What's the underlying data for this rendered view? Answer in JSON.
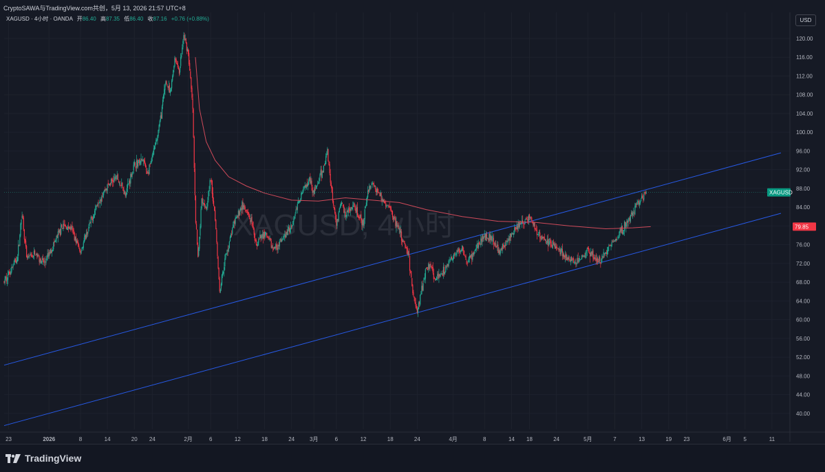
{
  "header": {
    "share_line": "CryptoSAWA与TradingView.com共创，5月 13, 2026 21:57 UTC+8"
  },
  "legend": {
    "symbol_line": "XAGUSD · 4小时 · OANDA",
    "open_label": "开",
    "open_value": "86.40",
    "high_label": "高",
    "high_value": "87.35",
    "low_label": "低",
    "low_value": "86.40",
    "close_label": "收",
    "close_value": "87.16",
    "change": "+0.76 (+0.88%)"
  },
  "currency_button": "USD",
  "watermark": "XAGUSD, 4小时",
  "price_badge": {
    "label": "XAGUSD",
    "color": "#089981"
  },
  "ma_badge": {
    "label": "79.85",
    "color": "#f23645"
  },
  "footer": {
    "brand": "TradingView"
  },
  "colors": {
    "background": "#161a25",
    "up": "#22ab94",
    "down": "#f23645",
    "ma": "#d04a5a",
    "trendline": "#2962ff"
  },
  "chart_data": {
    "type": "candlestick",
    "title": "",
    "ylim": [
      36.6,
      124.4
    ],
    "y_ticks": [
      "120.00",
      "116.00",
      "112.00",
      "108.00",
      "104.00",
      "100.00",
      "96.00",
      "92.00",
      "88.00",
      "84.00",
      "80.00",
      "76.00",
      "72.00",
      "68.00",
      "64.00",
      "60.00",
      "56.00",
      "52.00",
      "48.00",
      "44.00",
      "40.00"
    ],
    "x_ticks": [
      {
        "label": "23",
        "day": -9,
        "bold": false
      },
      {
        "label": "2026",
        "day": 0,
        "bold": true
      },
      {
        "label": "8",
        "day": 7,
        "bold": false
      },
      {
        "label": "14",
        "day": 13,
        "bold": false
      },
      {
        "label": "20",
        "day": 19,
        "bold": false
      },
      {
        "label": "24",
        "day": 23,
        "bold": false
      },
      {
        "label": "2月",
        "day": 31,
        "bold": false
      },
      {
        "label": "6",
        "day": 36,
        "bold": false
      },
      {
        "label": "12",
        "day": 42,
        "bold": false
      },
      {
        "label": "18",
        "day": 48,
        "bold": false
      },
      {
        "label": "24",
        "day": 54,
        "bold": false
      },
      {
        "label": "3月",
        "day": 59,
        "bold": false
      },
      {
        "label": "6",
        "day": 64,
        "bold": false
      },
      {
        "label": "12",
        "day": 70,
        "bold": false
      },
      {
        "label": "18",
        "day": 76,
        "bold": false
      },
      {
        "label": "24",
        "day": 82,
        "bold": false
      },
      {
        "label": "4月",
        "day": 90,
        "bold": false
      },
      {
        "label": "8",
        "day": 97,
        "bold": false
      },
      {
        "label": "14",
        "day": 103,
        "bold": false
      },
      {
        "label": "18",
        "day": 107,
        "bold": false
      },
      {
        "label": "24",
        "day": 113,
        "bold": false
      },
      {
        "label": "5月",
        "day": 120,
        "bold": false
      },
      {
        "label": "7",
        "day": 126,
        "bold": false
      },
      {
        "label": "13",
        "day": 132,
        "bold": false
      },
      {
        "label": "19",
        "day": 138,
        "bold": false
      },
      {
        "label": "23",
        "day": 142,
        "bold": false
      },
      {
        "label": "6月",
        "day": 151,
        "bold": false
      },
      {
        "label": "5",
        "day": 155,
        "bold": false
      },
      {
        "label": "11",
        "day": 161,
        "bold": false
      }
    ],
    "xlim_days": [
      -10,
      165
    ],
    "price_path": [
      {
        "day": -10,
        "price": 68.0
      },
      {
        "day": -7,
        "price": 73.5
      },
      {
        "day": -6,
        "price": 83.0
      },
      {
        "day": -5,
        "price": 73.0
      },
      {
        "day": -3,
        "price": 74.0
      },
      {
        "day": -1,
        "price": 72.0
      },
      {
        "day": 1,
        "price": 76.0
      },
      {
        "day": 3,
        "price": 80.0
      },
      {
        "day": 5,
        "price": 79.5
      },
      {
        "day": 7,
        "price": 74.5
      },
      {
        "day": 9,
        "price": 80.0
      },
      {
        "day": 11,
        "price": 85.5
      },
      {
        "day": 13,
        "price": 88.5
      },
      {
        "day": 15,
        "price": 90.5
      },
      {
        "day": 17,
        "price": 87.0
      },
      {
        "day": 19,
        "price": 93.0
      },
      {
        "day": 21,
        "price": 94.0
      },
      {
        "day": 22,
        "price": 91.0
      },
      {
        "day": 24,
        "price": 98.5
      },
      {
        "day": 25,
        "price": 104.0
      },
      {
        "day": 26,
        "price": 111.0
      },
      {
        "day": 27,
        "price": 108.0
      },
      {
        "day": 28,
        "price": 116.0
      },
      {
        "day": 29,
        "price": 113.0
      },
      {
        "day": 30,
        "price": 120.5
      },
      {
        "day": 31,
        "price": 117.0
      },
      {
        "day": 32,
        "price": 105.0
      },
      {
        "day": 32.6,
        "price": 82.0
      },
      {
        "day": 33.2,
        "price": 73.0
      },
      {
        "day": 34,
        "price": 86.0
      },
      {
        "day": 35,
        "price": 84.0
      },
      {
        "day": 36,
        "price": 90.0
      },
      {
        "day": 37,
        "price": 82.0
      },
      {
        "day": 38,
        "price": 66.0
      },
      {
        "day": 39,
        "price": 72.0
      },
      {
        "day": 41,
        "price": 80.0
      },
      {
        "day": 43,
        "price": 84.5
      },
      {
        "day": 45,
        "price": 81.0
      },
      {
        "day": 46,
        "price": 76.0
      },
      {
        "day": 48,
        "price": 78.5
      },
      {
        "day": 50,
        "price": 75.0
      },
      {
        "day": 52,
        "price": 77.0
      },
      {
        "day": 54,
        "price": 80.0
      },
      {
        "day": 56,
        "price": 86.5
      },
      {
        "day": 58,
        "price": 90.5
      },
      {
        "day": 59,
        "price": 87.0
      },
      {
        "day": 61,
        "price": 92.0
      },
      {
        "day": 62,
        "price": 96.0
      },
      {
        "day": 63,
        "price": 87.0
      },
      {
        "day": 64,
        "price": 80.5
      },
      {
        "day": 65,
        "price": 85.0
      },
      {
        "day": 66,
        "price": 82.5
      },
      {
        "day": 68,
        "price": 84.0
      },
      {
        "day": 70,
        "price": 80.0
      },
      {
        "day": 71,
        "price": 88.0
      },
      {
        "day": 72,
        "price": 89.0
      },
      {
        "day": 74,
        "price": 86.0
      },
      {
        "day": 76,
        "price": 83.5
      },
      {
        "day": 78,
        "price": 79.0
      },
      {
        "day": 80,
        "price": 74.0
      },
      {
        "day": 81,
        "price": 66.0
      },
      {
        "day": 82,
        "price": 61.5
      },
      {
        "day": 83,
        "price": 66.5
      },
      {
        "day": 84,
        "price": 71.0
      },
      {
        "day": 85,
        "price": 72.0
      },
      {
        "day": 86,
        "price": 68.5
      },
      {
        "day": 88,
        "price": 70.5
      },
      {
        "day": 90,
        "price": 73.5
      },
      {
        "day": 92,
        "price": 75.5
      },
      {
        "day": 93,
        "price": 72.0
      },
      {
        "day": 95,
        "price": 75.0
      },
      {
        "day": 97,
        "price": 78.0
      },
      {
        "day": 99,
        "price": 77.0
      },
      {
        "day": 100,
        "price": 74.5
      },
      {
        "day": 102,
        "price": 76.5
      },
      {
        "day": 104,
        "price": 79.5
      },
      {
        "day": 106,
        "price": 81.0
      },
      {
        "day": 107,
        "price": 82.0
      },
      {
        "day": 109,
        "price": 78.0
      },
      {
        "day": 111,
        "price": 76.5
      },
      {
        "day": 113,
        "price": 75.5
      },
      {
        "day": 115,
        "price": 73.5
      },
      {
        "day": 117,
        "price": 72.0
      },
      {
        "day": 119,
        "price": 73.5
      },
      {
        "day": 120,
        "price": 75.0
      },
      {
        "day": 122,
        "price": 72.5
      },
      {
        "day": 123,
        "price": 72.8
      },
      {
        "day": 125,
        "price": 76.0
      },
      {
        "day": 127,
        "price": 78.5
      },
      {
        "day": 129,
        "price": 81.0
      },
      {
        "day": 131,
        "price": 84.5
      },
      {
        "day": 132,
        "price": 86.0
      },
      {
        "day": 133,
        "price": 87.16
      }
    ],
    "ma_path": [
      {
        "day": 32.6,
        "price": 116.0
      },
      {
        "day": 33.5,
        "price": 105.0
      },
      {
        "day": 35,
        "price": 98.0
      },
      {
        "day": 37,
        "price": 94.0
      },
      {
        "day": 40,
        "price": 90.5
      },
      {
        "day": 44,
        "price": 88.5
      },
      {
        "day": 48,
        "price": 87.0
      },
      {
        "day": 54,
        "price": 85.5
      },
      {
        "day": 60,
        "price": 85.3
      },
      {
        "day": 66,
        "price": 86.0
      },
      {
        "day": 72,
        "price": 85.5
      },
      {
        "day": 78,
        "price": 85.0
      },
      {
        "day": 84,
        "price": 83.5
      },
      {
        "day": 92,
        "price": 82.0
      },
      {
        "day": 100,
        "price": 81.0
      },
      {
        "day": 108,
        "price": 80.8
      },
      {
        "day": 116,
        "price": 80.0
      },
      {
        "day": 124,
        "price": 79.4
      },
      {
        "day": 130,
        "price": 79.6
      },
      {
        "day": 134,
        "price": 79.85
      }
    ],
    "trendlines": [
      {
        "name": "upper",
        "from": {
          "day": -10,
          "price": 50.3
        },
        "to": {
          "day": 163,
          "price": 95.6
        }
      },
      {
        "name": "lower",
        "from": {
          "day": -10,
          "price": 37.4
        },
        "to": {
          "day": 163,
          "price": 82.7
        }
      }
    ],
    "last_price": 87.16,
    "ma_last": 79.85
  }
}
